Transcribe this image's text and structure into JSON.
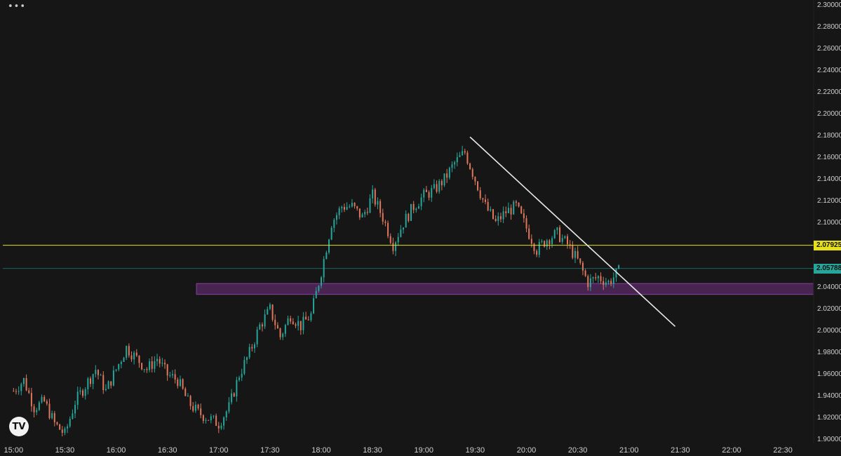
{
  "app": {
    "menu_icon": "more-dots-icon",
    "menu_glyph": "•••",
    "logo_icon": "tradingview-logo-icon",
    "logo_text": "TV"
  },
  "colors": {
    "background": "#161616",
    "up": "#26a69a",
    "down": "#e0775c",
    "resistance": "#e5e01a",
    "zone_fill": "#5a2a66",
    "zone_border": "#8a3fa0",
    "trendline": "#e8e8e8",
    "current_price": "#26a69a"
  },
  "chart_data": {
    "type": "candlestick",
    "title": "",
    "xlabel": "",
    "ylabel": "",
    "ylim": [
      1.9,
      2.3
    ],
    "y_ticks": [
      "2.30000",
      "2.28000",
      "2.26000",
      "2.24000",
      "2.22000",
      "2.20000",
      "2.18000",
      "2.16000",
      "2.14000",
      "2.12000",
      "2.10000",
      "2.04000",
      "2.02000",
      "2.00000",
      "1.98000",
      "1.96000",
      "1.94000",
      "1.92000",
      "1.90000"
    ],
    "x_ticks": [
      "15:00",
      "15:30",
      "16:00",
      "16:30",
      "17:00",
      "17:30",
      "18:00",
      "18:30",
      "19:00",
      "19:30",
      "20:00",
      "20:30",
      "21:00",
      "21:30",
      "22:00",
      "22:30"
    ],
    "x_range": [
      "14:57",
      "22:48"
    ],
    "grid": false,
    "price_path": [
      [
        "15:00",
        1.945
      ],
      [
        "15:06",
        1.955
      ],
      [
        "15:12",
        1.93
      ],
      [
        "15:18",
        1.935
      ],
      [
        "15:24",
        1.915
      ],
      [
        "15:30",
        1.905
      ],
      [
        "15:36",
        1.935
      ],
      [
        "15:42",
        1.95
      ],
      [
        "15:48",
        1.965
      ],
      [
        "15:54",
        1.945
      ],
      [
        "16:06",
        1.985
      ],
      [
        "16:12",
        1.975
      ],
      [
        "16:18",
        1.965
      ],
      [
        "16:24",
        1.975
      ],
      [
        "16:30",
        1.96
      ],
      [
        "16:36",
        1.955
      ],
      [
        "16:42",
        1.935
      ],
      [
        "16:48",
        1.925
      ],
      [
        "16:54",
        1.92
      ],
      [
        "17:00",
        1.915
      ],
      [
        "17:06",
        1.93
      ],
      [
        "17:12",
        1.96
      ],
      [
        "17:18",
        1.98
      ],
      [
        "17:24",
        2.005
      ],
      [
        "17:30",
        2.02
      ],
      [
        "17:36",
        1.995
      ],
      [
        "17:42",
        2.015
      ],
      [
        "17:48",
        2.005
      ],
      [
        "17:54",
        2.015
      ],
      [
        "18:00",
        2.055
      ],
      [
        "18:06",
        2.1
      ],
      [
        "18:12",
        2.115
      ],
      [
        "18:18",
        2.115
      ],
      [
        "18:24",
        2.105
      ],
      [
        "18:30",
        2.125
      ],
      [
        "18:36",
        2.105
      ],
      [
        "18:42",
        2.08
      ],
      [
        "18:48",
        2.1
      ],
      [
        "18:54",
        2.115
      ],
      [
        "19:00",
        2.125
      ],
      [
        "19:06",
        2.13
      ],
      [
        "19:12",
        2.14
      ],
      [
        "19:18",
        2.155
      ],
      [
        "19:24",
        2.165
      ],
      [
        "19:30",
        2.14
      ],
      [
        "19:36",
        2.115
      ],
      [
        "19:42",
        2.1
      ],
      [
        "19:48",
        2.11
      ],
      [
        "19:54",
        2.115
      ],
      [
        "20:00",
        2.095
      ],
      [
        "20:06",
        2.075
      ],
      [
        "20:12",
        2.085
      ],
      [
        "20:18",
        2.09
      ],
      [
        "20:24",
        2.08
      ],
      [
        "20:30",
        2.065
      ],
      [
        "20:36",
        2.045
      ],
      [
        "20:42",
        2.05
      ],
      [
        "20:48",
        2.045
      ],
      [
        "20:54",
        2.055
      ]
    ],
    "levels": {
      "resistance": 2.07925,
      "resistance_label": "2.07925",
      "current_price": 2.05788,
      "current_label": "2.05788"
    },
    "zone": {
      "top": 2.044,
      "bottom": 2.034,
      "start_time": "16:47",
      "end_time": "22:48"
    },
    "trendline": {
      "start": [
        "19:27",
        2.179
      ],
      "end": [
        "21:27",
        2.0045
      ]
    },
    "logo_position": "bottom-left"
  }
}
